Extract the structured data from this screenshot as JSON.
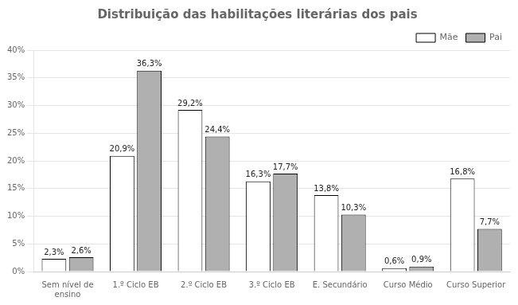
{
  "chart_data": {
    "type": "bar",
    "title": "Distribuição das habilitações literárias dos pais",
    "categories": [
      "Sem nível de\nensino",
      "1.º Ciclo EB",
      "2.º Ciclo EB",
      "3.º Ciclo EB",
      "E. Secundário",
      "Curso Médio",
      "Curso Superior"
    ],
    "series": [
      {
        "name": "Mãe",
        "color": "#ffffff",
        "values": [
          2.3,
          20.9,
          29.2,
          16.3,
          13.8,
          0.6,
          16.8
        ],
        "value_labels": [
          "2,3%",
          "20,9%",
          "29,2%",
          "16,3%",
          "13,8%",
          "0,6%",
          "16,8%"
        ]
      },
      {
        "name": "Pai",
        "color": "#b0b0b0",
        "values": [
          2.6,
          36.3,
          24.4,
          17.7,
          10.3,
          0.9,
          7.7
        ],
        "value_labels": [
          "2,6%",
          "36,3%",
          "24,4%",
          "17,7%",
          "10,3%",
          "0,9%",
          "7,7%"
        ]
      }
    ],
    "ylim": [
      0,
      40
    ],
    "yticks": [
      {
        "value": 0,
        "label": "0%"
      },
      {
        "value": 5,
        "label": "5%"
      },
      {
        "value": 10,
        "label": "10%"
      },
      {
        "value": 15,
        "label": "15%"
      },
      {
        "value": 20,
        "label": "20%"
      },
      {
        "value": 25,
        "label": "25%"
      },
      {
        "value": 30,
        "label": "30%"
      },
      {
        "value": 35,
        "label": "35%"
      },
      {
        "value": 40,
        "label": "40%"
      }
    ],
    "grid": true,
    "legend": "upper right",
    "data_labels": true
  }
}
